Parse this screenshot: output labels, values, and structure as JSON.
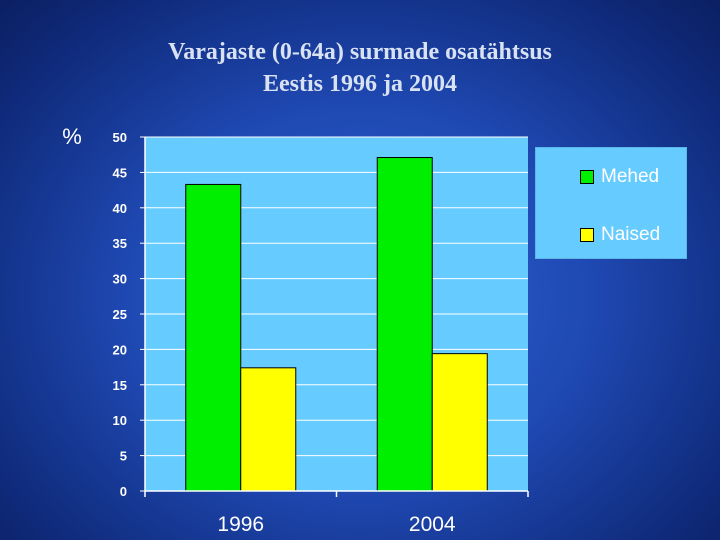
{
  "chart_data": {
    "type": "bar",
    "title": [
      "Varajaste (0-64a) surmade osatähtsus",
      "Eestis 1996 ja 2004"
    ],
    "ylabel": "%",
    "xlabel": "",
    "categories": [
      "1996",
      "2004"
    ],
    "series": [
      {
        "name": "Mehed",
        "color": "#00ee00",
        "values": [
          43.3,
          47.1
        ]
      },
      {
        "name": "Naised",
        "color": "#ffff00",
        "values": [
          17.4,
          19.4
        ]
      }
    ],
    "ylim": [
      0,
      50
    ],
    "yticks": [
      0,
      5,
      10,
      15,
      20,
      25,
      30,
      35,
      40,
      45,
      50
    ],
    "grid": true,
    "legend_position": "right",
    "plot_background": "#66ccff",
    "gridline_color": "#ffffff",
    "tick_label_color": "#ffffff"
  }
}
